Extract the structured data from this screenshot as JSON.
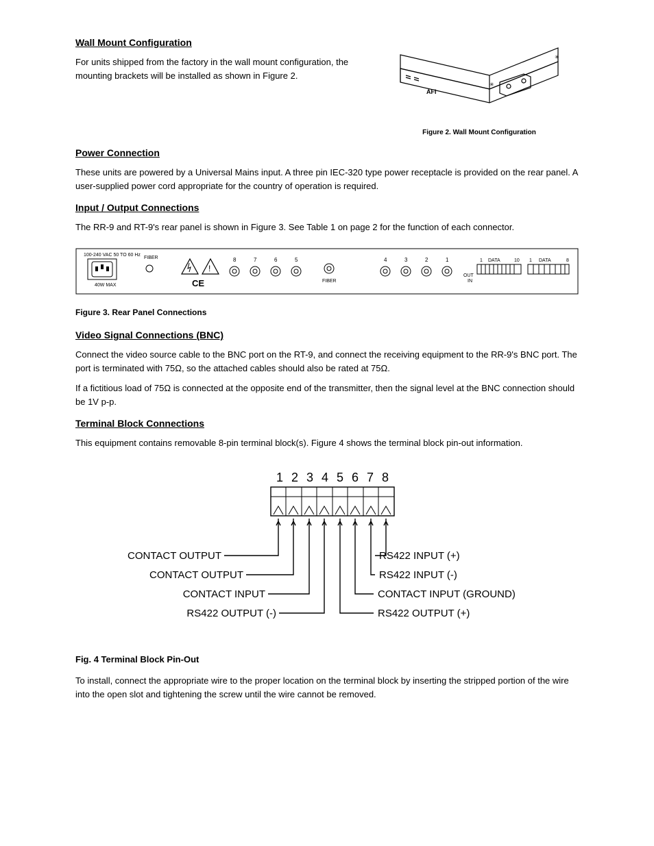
{
  "section1": {
    "heading": "Wall Mount Configuration",
    "para": "For units shipped from the factory in the wall mount configuration, the mounting brackets will be installed as shown in Figure 2."
  },
  "wallmount": {
    "logo": "AFI",
    "caption": "Figure 2. Wall Mount Configuration",
    "line_color": "#000000",
    "background": "#ffffff"
  },
  "section2": {
    "heading": "Power Connection",
    "para": "These units are powered by a Universal Mains input. A three pin IEC-320 type power receptacle is provided on the rear panel. A user-supplied power cord appropriate for the country of operation is required."
  },
  "section3": {
    "heading": "Input / Output Connections",
    "para": "The RR-9 and RT-9's rear panel is shown in Figure 3. See Table 1 on page 2 for the function of each connector."
  },
  "rear_panel": {
    "power_label": "100-240 VAC  50 TO 60 Hz",
    "watts": "40W MAX",
    "fiber_top": "FIBER",
    "fiber_mid": "FIBER",
    "bnc_left": [
      "8",
      "7",
      "6",
      "5"
    ],
    "bnc_right": [
      "4",
      "3",
      "2",
      "1"
    ],
    "data_label_a": "DATA",
    "data_num_a_left": "1",
    "data_num_a_right": "10",
    "data_label_b": "DATA",
    "data_num_b_left": "1",
    "data_num_b_right": "8",
    "out_in": "OUT\nIN",
    "colors": {
      "stroke": "#000000",
      "bg": "#ffffff",
      "label_size": 7
    }
  },
  "fig3_caption": "Figure 3. Rear Panel Connections",
  "section4": {
    "heading": "Video Signal Connections (BNC)",
    "para1_pre": "Connect the video source cable to the BNC port on the RT-9, and connect the receiving equipment to the RR-9's BNC port. The port is terminated with 75",
    "para1_post": ", so the attached cables should also be rated at 75",
    "para1_tail": ".",
    "para2_pre": "If a fictitious load of 75",
    "para2_post": " is connected at the opposite end of the transmitter, then the signal level at the BNC connection should be 1V p-p.",
    "ohm": "Ω"
  },
  "section5": {
    "heading": "Terminal Block Connections",
    "para": "This equipment contains removable 8-pin terminal block(s). Figure 4 shows the terminal block pin-out information."
  },
  "terminal_block": {
    "pins": [
      "1",
      "2",
      "3",
      "4",
      "5",
      "6",
      "7",
      "8"
    ],
    "left_labels": [
      "CONTACT OUTPUT",
      "CONTACT OUTPUT",
      "CONTACT INPUT",
      "RS422 OUTPUT (-)"
    ],
    "right_labels": [
      "RS422 INPUT (+)",
      "RS422 INPUT (-)",
      "CONTACT INPUT (GROUND)",
      "RS422 OUTPUT (+)"
    ],
    "colors": {
      "stroke": "#000000",
      "font_size": 15
    }
  },
  "fig4_caption": "Fig. 4  Terminal Block Pin-Out",
  "footer": {
    "note": "To install, connect the appropriate wire to the proper location on the terminal block by inserting the stripped portion of the wire into the open slot and tightening the screw until the wire cannot be removed."
  }
}
